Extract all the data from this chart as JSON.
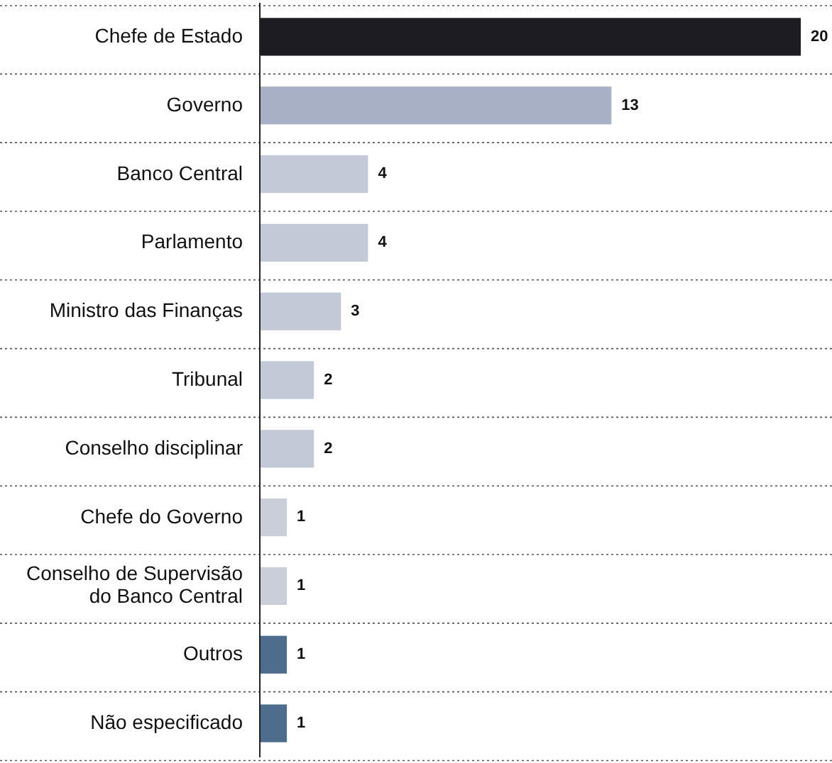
{
  "chart_data": {
    "type": "bar",
    "orientation": "horizontal",
    "categories": [
      "Chefe de Estado",
      "Governo",
      "Banco Central",
      "Parlamento",
      "Ministro das Finanças",
      "Tribunal",
      "Conselho disciplinar",
      "Chefe do Governo",
      "Conselho de Supervisão do Banco Central",
      "Outros",
      "Não especificado"
    ],
    "values": [
      20,
      13,
      4,
      4,
      3,
      2,
      2,
      1,
      1,
      1,
      1
    ],
    "colors": [
      "#1c1c22",
      "#a7b0c4",
      "#c3c9d6",
      "#c3c9d6",
      "#c3c9d6",
      "#c3c9d6",
      "#c3c9d6",
      "#c9ced9",
      "#c9ced9",
      "#4e6d8c",
      "#4e6d8c"
    ],
    "data_labels": true,
    "grid": "y",
    "tick_labels": "y"
  }
}
